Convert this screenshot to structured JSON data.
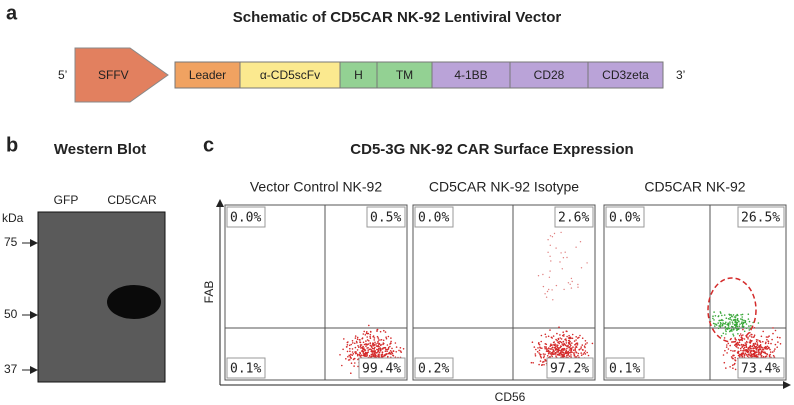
{
  "panel_a": {
    "label": "a",
    "title": "Schematic of CD5CAR NK-92 Lentiviral Vector",
    "five_prime": "5’",
    "three_prime": "3’",
    "promoter": "SFFV",
    "elements": [
      "Leader",
      "α-CD5scFv",
      "H",
      "TM",
      "4-1BB",
      "CD28",
      "CD3zeta"
    ]
  },
  "panel_b": {
    "label": "b",
    "title": "Western Blot",
    "lanes": [
      "GFP",
      "CD5CAR"
    ],
    "unit": "kDa",
    "markers": [
      "75",
      "50",
      "37"
    ]
  },
  "panel_c": {
    "label": "c",
    "title": "CD5-3G NK-92 CAR  Surface Expression",
    "y_axis": "FAB",
    "x_axis": "CD56",
    "plots": [
      {
        "title": "Vector Control NK-92",
        "quadrants": [
          "0.0%",
          "0.5%",
          "0.1%",
          "99.4%"
        ]
      },
      {
        "title": "CD5CAR NK-92 Isotype",
        "quadrants": [
          "0.0%",
          "2.6%",
          "0.2%",
          "97.2%"
        ]
      },
      {
        "title": "CD5CAR NK-92",
        "quadrants": [
          "0.0%",
          "26.5%",
          "0.1%",
          "73.4%"
        ]
      }
    ]
  }
}
